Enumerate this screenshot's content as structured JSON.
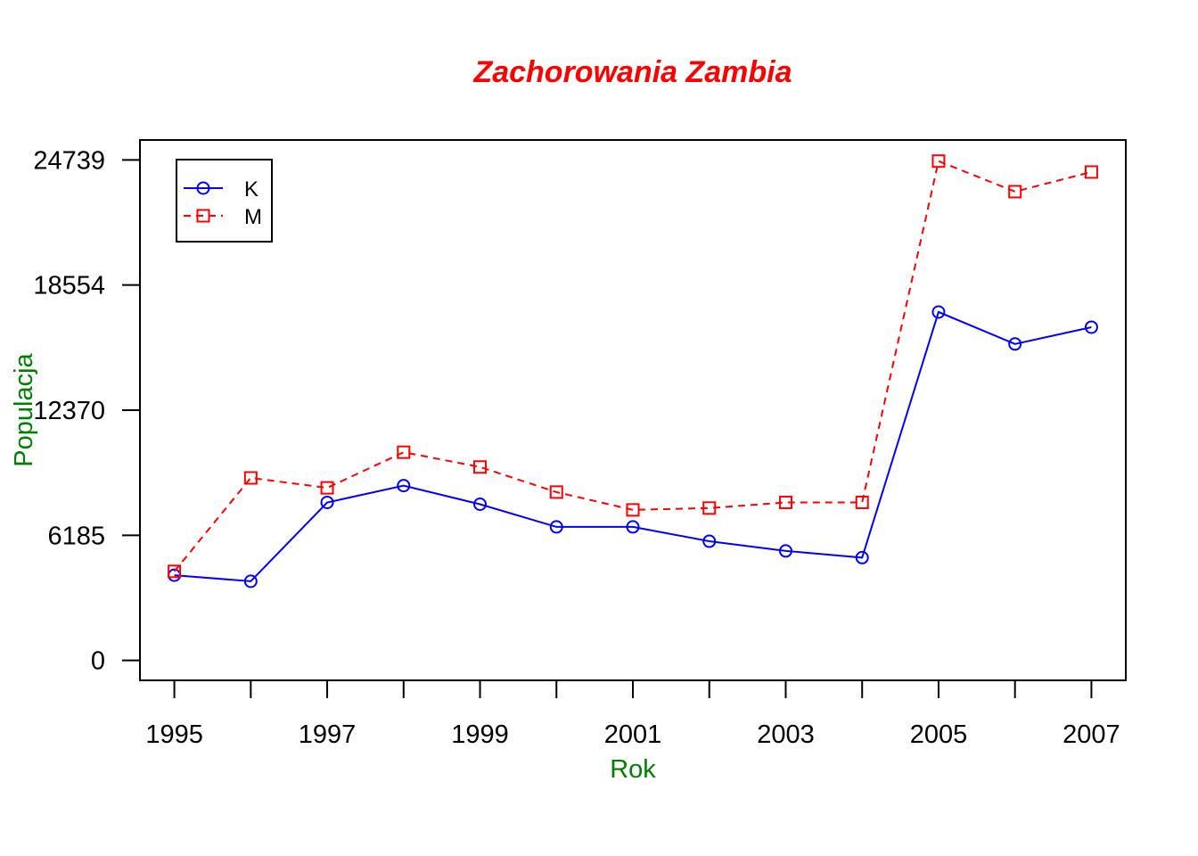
{
  "chart_data": {
    "type": "line",
    "title": "Zachorowania Zambia",
    "xlabel": "Rok",
    "ylabel": "Populacja",
    "x": [
      1995,
      1996,
      1997,
      1998,
      1999,
      2000,
      2001,
      2002,
      2003,
      2004,
      2005,
      2006,
      2007
    ],
    "x_tick_labels": [
      "1995",
      "1997",
      "1999",
      "2001",
      "2003",
      "2005",
      "2007"
    ],
    "y_ticks": [
      0,
      6185,
      12370,
      18554,
      24739
    ],
    "y_tick_labels": [
      "0",
      "6185",
      "12370",
      "18554",
      "24739"
    ],
    "xlim": [
      1994.55,
      2007.45
    ],
    "ylim": [
      -985,
      25724
    ],
    "grid": false,
    "legend_position": "top-left",
    "series": [
      {
        "name": "K",
        "color": "#0000ff",
        "line": "solid",
        "marker": "circle",
        "values": [
          4210,
          3910,
          7810,
          8640,
          7720,
          6600,
          6600,
          5890,
          5410,
          5080,
          17220,
          15640,
          16470
        ]
      },
      {
        "name": "M",
        "color": "#ff0000",
        "line": "dashed",
        "marker": "square",
        "values": [
          4400,
          9020,
          8530,
          10290,
          9560,
          8320,
          7440,
          7530,
          7810,
          7810,
          24680,
          23170,
          24140
        ]
      }
    ],
    "title_color": "#ff0000",
    "axis_label_color": "#008000"
  }
}
